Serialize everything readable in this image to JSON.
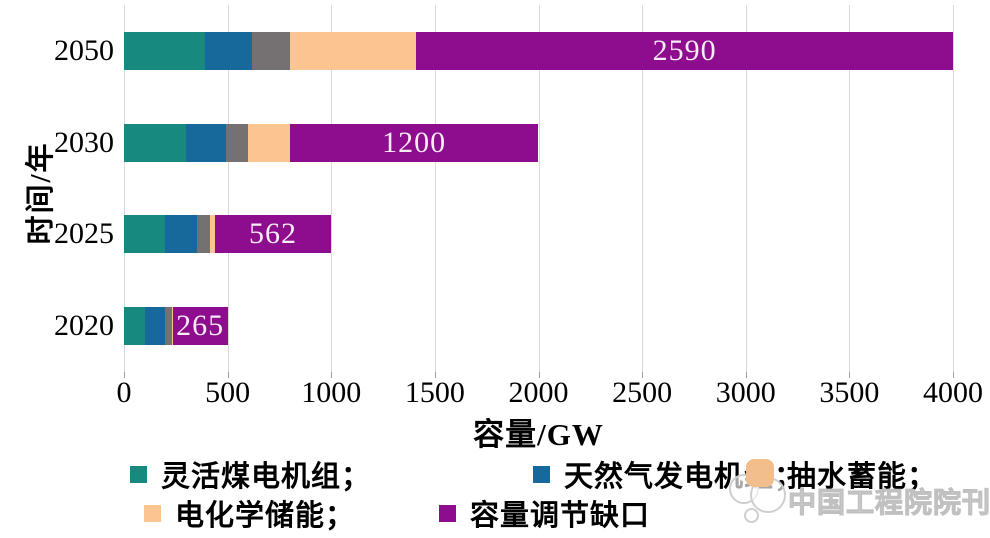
{
  "watermark": {
    "text": "中国工程院院刊"
  },
  "chart_data": {
    "type": "bar",
    "orientation": "horizontal",
    "stacked": true,
    "title": "",
    "xlabel": "容量/GW",
    "ylabel": "时间/年",
    "xlim": [
      0,
      4000
    ],
    "xticks": [
      "0",
      "500",
      "1000",
      "1500",
      "2000",
      "2500",
      "3000",
      "3500",
      "4000"
    ],
    "grid": "vertical",
    "categories": [
      "2050",
      "2030",
      "2025",
      "2020"
    ],
    "series": [
      {
        "id": "flexible-coal",
        "name": "灵活煤电机组",
        "color": "#17897f",
        "values": [
          390,
          300,
          200,
          100
        ]
      },
      {
        "id": "natural-gas",
        "name": "天然气发电机组",
        "color": "#17689b",
        "values": [
          230,
          190,
          150,
          100
        ]
      },
      {
        "id": "pumped-storage",
        "name": "抽水蓄能",
        "color": "#757172",
        "values": [
          180,
          110,
          65,
          30
        ]
      },
      {
        "id": "battery-storage",
        "name": "电化学储能",
        "color": "#fac591",
        "values": [
          610,
          200,
          23,
          5
        ]
      },
      {
        "id": "capacity-gap",
        "name": "容量调节缺口",
        "color": "#8e0c8e",
        "values": [
          2590,
          1200,
          562,
          265
        ]
      }
    ],
    "bar_labels": [
      "2590",
      "1200",
      "562",
      "265"
    ],
    "labeled_series": "capacity-gap",
    "legend_position": "bottom",
    "legend_labels": [
      "灵活煤电机组；",
      "天然气发电机组；",
      "抽水蓄能；",
      "电化学储能；",
      "容量调节缺口"
    ]
  }
}
